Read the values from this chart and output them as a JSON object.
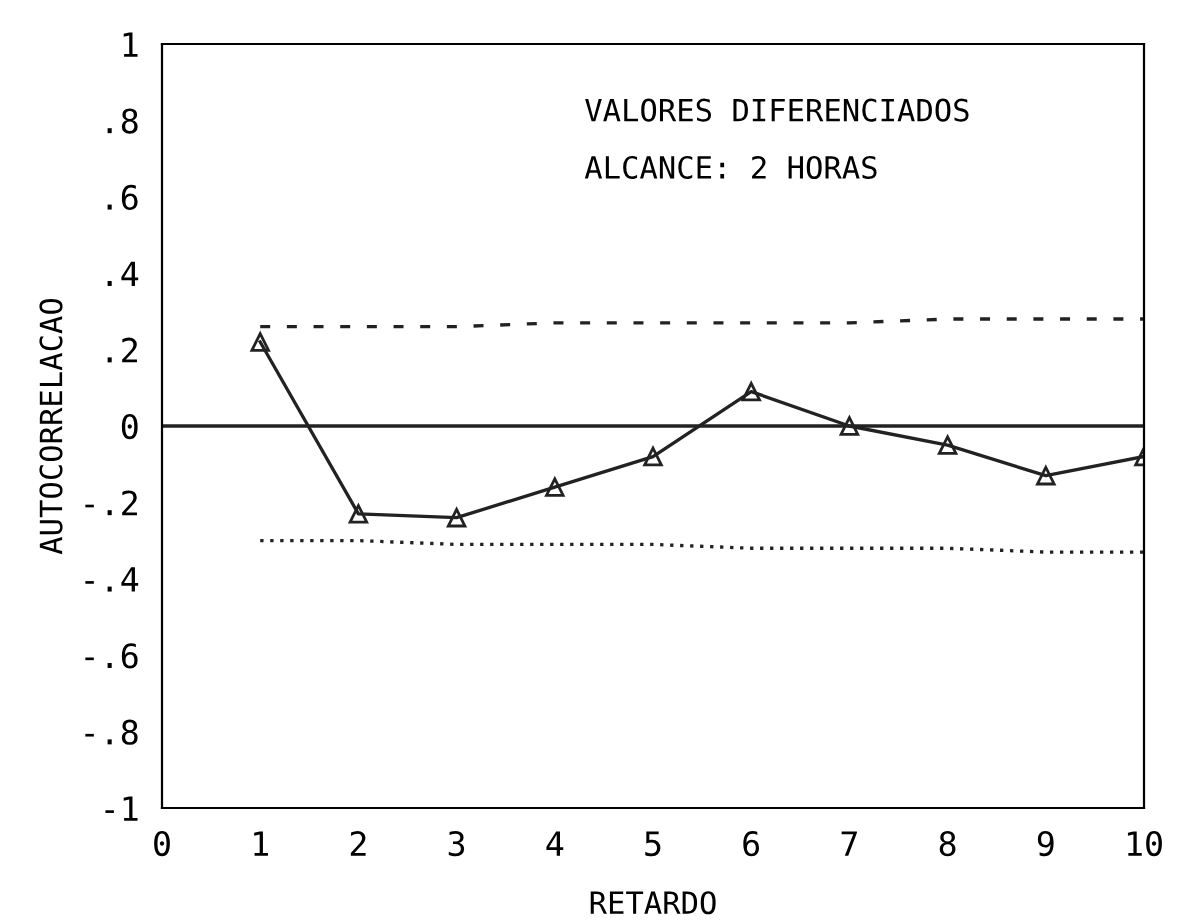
{
  "chart_data": {
    "type": "line",
    "xlabel": "RETARDO",
    "ylabel": "AUTOCORRELACAO",
    "annotations": [
      "VALORES DIFERENCIADOS",
      "ALCANCE: 2 HORAS"
    ],
    "x": [
      1,
      2,
      3,
      4,
      5,
      6,
      7,
      8,
      9,
      10
    ],
    "series": [
      {
        "color": "#222222",
        "values": [
          0.22,
          -0.23,
          -0.24,
          -0.16,
          -0.08,
          0.09,
          0.0,
          -0.05,
          -0.13,
          -0.08
        ],
        "marker": "triangle",
        "line_style": "solid"
      },
      {
        "color": "#222222",
        "values": [
          0.26,
          0.26,
          0.26,
          0.27,
          0.27,
          0.27,
          0.27,
          0.28,
          0.28,
          0.28
        ],
        "marker": "none",
        "line_style": "dashed"
      },
      {
        "color": "#222222",
        "values": [
          -0.3,
          -0.3,
          -0.31,
          -0.31,
          -0.31,
          -0.32,
          -0.32,
          -0.32,
          -0.33,
          -0.33
        ],
        "marker": "none",
        "line_style": "dotted"
      }
    ],
    "ref_lines": [
      {
        "axis": "y",
        "value": 0,
        "line_style": "solid",
        "color": "#222222"
      }
    ],
    "xlim": [
      0,
      10
    ],
    "xticks": [
      0,
      1,
      2,
      3,
      4,
      5,
      6,
      7,
      8,
      9,
      10
    ],
    "ylim": [
      -1,
      1
    ],
    "yticks": [
      {
        "value": -1,
        "label": "-1"
      },
      {
        "value": -0.8,
        "label": "-.8"
      },
      {
        "value": -0.6,
        "label": "-.6"
      },
      {
        "value": -0.4,
        "label": "-.4"
      },
      {
        "value": -0.2,
        "label": "-.2"
      },
      {
        "value": 0,
        "label": "0"
      },
      {
        "value": 0.2,
        "label": ".2"
      },
      {
        "value": 0.4,
        "label": ".4"
      },
      {
        "value": 0.6,
        "label": ".6"
      },
      {
        "value": 0.8,
        "label": ".8"
      },
      {
        "value": 1,
        "label": "1"
      }
    ],
    "grid": false,
    "legend": false
  }
}
